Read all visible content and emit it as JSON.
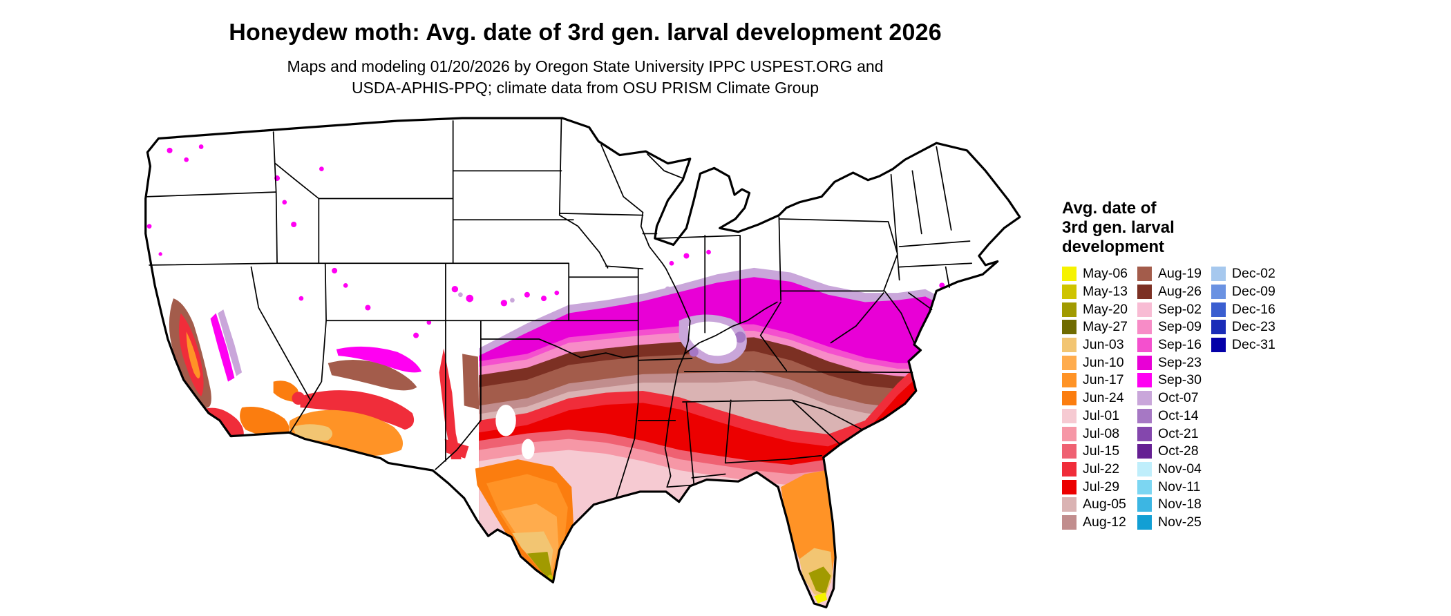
{
  "header": {
    "title": "Honeydew moth: Avg. date of 3rd gen. larval development 2026",
    "subtitle_line1": "Maps and modeling 01/20/2026 by Oregon State University IPPC USPEST.ORG and",
    "subtitle_line2": "USDA-APHIS-PPQ; climate data from OSU PRISM Climate Group"
  },
  "legend": {
    "title_lines": [
      "Avg. date of",
      "3rd gen. larval",
      "development"
    ],
    "columns": [
      [
        {
          "label": "May-06",
          "color": "#f6f200"
        },
        {
          "label": "May-13",
          "color": "#cfc400"
        },
        {
          "label": "May-20",
          "color": "#a19a00"
        },
        {
          "label": "May-27",
          "color": "#6f6b00"
        },
        {
          "label": "Jun-03",
          "color": "#f2c572"
        },
        {
          "label": "Jun-10",
          "color": "#ffac4d"
        },
        {
          "label": "Jun-17",
          "color": "#ff9326"
        },
        {
          "label": "Jun-24",
          "color": "#fb7d0f"
        },
        {
          "label": "Jul-01",
          "color": "#f6cad2"
        },
        {
          "label": "Jul-08",
          "color": "#f697a6"
        },
        {
          "label": "Jul-15",
          "color": "#ef6172"
        },
        {
          "label": "Jul-22",
          "color": "#f02d3a"
        },
        {
          "label": "Jul-29",
          "color": "#ec0000"
        },
        {
          "label": "Aug-05",
          "color": "#dab3b3"
        },
        {
          "label": "Aug-12",
          "color": "#c18d8d"
        }
      ],
      [
        {
          "label": "Aug-19",
          "color": "#a35c4b"
        },
        {
          "label": "Aug-26",
          "color": "#7c3023"
        },
        {
          "label": "Sep-02",
          "color": "#f8bcd4"
        },
        {
          "label": "Sep-09",
          "color": "#f78cc7"
        },
        {
          "label": "Sep-16",
          "color": "#f450ce"
        },
        {
          "label": "Sep-23",
          "color": "#e800d6"
        },
        {
          "label": "Sep-30",
          "color": "#ff00f2"
        },
        {
          "label": "Oct-07",
          "color": "#c9a6da"
        },
        {
          "label": "Oct-14",
          "color": "#a678c4"
        },
        {
          "label": "Oct-21",
          "color": "#8447ad"
        },
        {
          "label": "Oct-28",
          "color": "#651f93"
        },
        {
          "label": "Nov-04",
          "color": "#bfeefb"
        },
        {
          "label": "Nov-11",
          "color": "#7cd6f2"
        },
        {
          "label": "Nov-18",
          "color": "#3cb6e3"
        },
        {
          "label": "Nov-25",
          "color": "#129fd4"
        }
      ],
      [
        {
          "label": "Dec-02",
          "color": "#a6c8ee"
        },
        {
          "label": "Dec-09",
          "color": "#6a92e2"
        },
        {
          "label": "Dec-16",
          "color": "#3a5ed0"
        },
        {
          "label": "Dec-23",
          "color": "#1a2cb8"
        },
        {
          "label": "Dec-31",
          "color": "#0400a8"
        }
      ]
    ]
  },
  "map": {
    "land_color": "#ffffff",
    "border_color": "#000000"
  }
}
